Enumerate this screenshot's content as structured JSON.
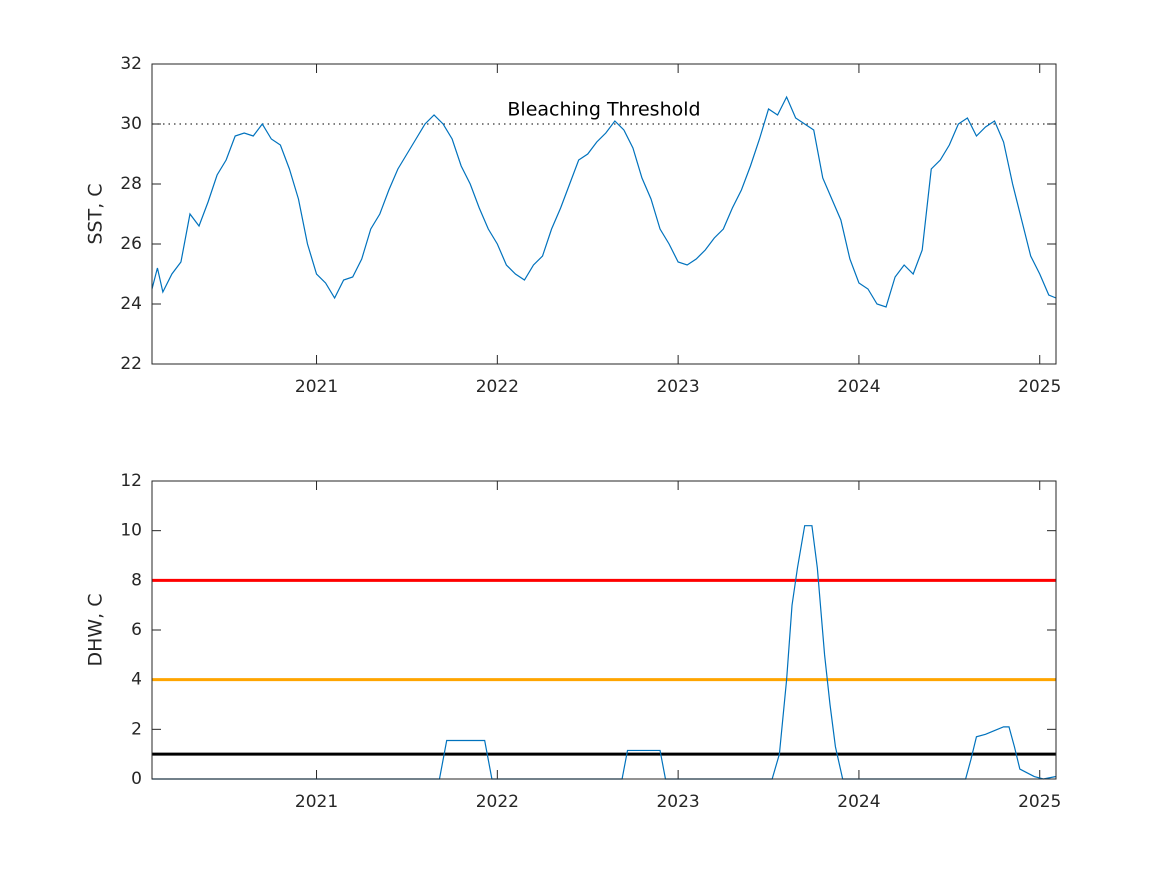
{
  "chart_data": [
    {
      "type": "line",
      "ylabel": "SST, C",
      "xlim": [
        2020.09,
        2025.09
      ],
      "xticks": [
        2021,
        2022,
        2023,
        2024,
        2025
      ],
      "ylim": [
        22,
        32
      ],
      "yticks": [
        22,
        24,
        26,
        28,
        30,
        32
      ],
      "x": [
        2020.09,
        2020.12,
        2020.15,
        2020.2,
        2020.25,
        2020.3,
        2020.35,
        2020.4,
        2020.45,
        2020.5,
        2020.55,
        2020.6,
        2020.65,
        2020.7,
        2020.75,
        2020.8,
        2020.85,
        2020.9,
        2020.95,
        2021.0,
        2021.05,
        2021.1,
        2021.15,
        2021.2,
        2021.25,
        2021.3,
        2021.35,
        2021.4,
        2021.45,
        2021.5,
        2021.55,
        2021.6,
        2021.65,
        2021.7,
        2021.75,
        2021.8,
        2021.85,
        2021.9,
        2021.95,
        2022.0,
        2022.05,
        2022.1,
        2022.15,
        2022.2,
        2022.25,
        2022.3,
        2022.35,
        2022.4,
        2022.45,
        2022.5,
        2022.55,
        2022.6,
        2022.65,
        2022.7,
        2022.75,
        2022.8,
        2022.85,
        2022.9,
        2022.95,
        2023.0,
        2023.05,
        2023.1,
        2023.15,
        2023.2,
        2023.25,
        2023.3,
        2023.35,
        2023.4,
        2023.45,
        2023.5,
        2023.55,
        2023.6,
        2023.65,
        2023.7,
        2023.75,
        2023.8,
        2023.85,
        2023.9,
        2023.95,
        2024.0,
        2024.05,
        2024.1,
        2024.15,
        2024.2,
        2024.25,
        2024.3,
        2024.35,
        2024.4,
        2024.45,
        2024.5,
        2024.55,
        2024.6,
        2024.65,
        2024.7,
        2024.75,
        2024.8,
        2024.85,
        2024.9,
        2024.95,
        2025.0,
        2025.05,
        2025.09
      ],
      "series": [
        {
          "color": "#0072bd",
          "values": [
            24.5,
            25.2,
            24.4,
            25.0,
            25.4,
            27.0,
            26.6,
            27.4,
            28.3,
            28.8,
            29.6,
            29.7,
            29.6,
            30.0,
            29.5,
            29.3,
            28.5,
            27.5,
            26.0,
            25.0,
            24.7,
            24.2,
            24.8,
            24.9,
            25.5,
            26.5,
            27.0,
            27.8,
            28.5,
            29.0,
            29.5,
            30.0,
            30.3,
            30.0,
            29.5,
            28.6,
            28.0,
            27.2,
            26.5,
            26.0,
            25.3,
            25.0,
            24.8,
            25.3,
            25.6,
            26.5,
            27.2,
            28.0,
            28.8,
            29.0,
            29.4,
            29.7,
            30.1,
            29.8,
            29.2,
            28.2,
            27.5,
            26.5,
            26.0,
            25.4,
            25.3,
            25.5,
            25.8,
            26.2,
            26.5,
            27.2,
            27.8,
            28.6,
            29.5,
            30.5,
            30.3,
            30.9,
            30.2,
            30.0,
            29.8,
            28.2,
            27.5,
            26.8,
            25.5,
            24.7,
            24.5,
            24.0,
            23.9,
            24.9,
            25.3,
            25.0,
            25.8,
            28.5,
            28.8,
            29.3,
            30.0,
            30.2,
            29.6,
            29.9,
            30.1,
            29.4,
            28.0,
            26.8,
            25.6,
            25.0,
            24.3,
            24.2
          ]
        }
      ],
      "hlines": [
        {
          "value": 30,
          "color": "#000000",
          "style": "dotted",
          "label": "Bleaching Threshold"
        }
      ]
    },
    {
      "type": "line",
      "ylabel": "DHW, C",
      "xlim": [
        2020.09,
        2025.09
      ],
      "xticks": [
        2021,
        2022,
        2023,
        2024,
        2025
      ],
      "ylim": [
        0,
        12
      ],
      "yticks": [
        0,
        2,
        4,
        6,
        8,
        10,
        12
      ],
      "x": [
        2020.09,
        2021.68,
        2021.72,
        2021.93,
        2021.97,
        2022.69,
        2022.72,
        2022.9,
        2022.93,
        2023.52,
        2023.56,
        2023.6,
        2023.63,
        2023.66,
        2023.7,
        2023.74,
        2023.77,
        2023.81,
        2023.84,
        2023.87,
        2023.91,
        2024.59,
        2024.62,
        2024.65,
        2024.7,
        2024.75,
        2024.8,
        2024.83,
        2024.86,
        2024.89,
        2024.93,
        2024.97,
        2025.02,
        2025.09
      ],
      "series": [
        {
          "color": "#0072bd",
          "values": [
            0,
            0,
            1.55,
            1.55,
            0,
            0,
            1.15,
            1.15,
            0,
            0,
            1.0,
            4.0,
            7.0,
            8.5,
            10.2,
            10.2,
            8.5,
            5.0,
            3.0,
            1.3,
            0,
            0,
            0.8,
            1.7,
            1.8,
            1.95,
            2.1,
            2.1,
            1.3,
            0.4,
            0.25,
            0.1,
            0,
            0.1
          ]
        }
      ],
      "hlines": [
        {
          "value": 8,
          "color": "#ff0000",
          "style": "solid"
        },
        {
          "value": 4,
          "color": "#ffa500",
          "style": "solid"
        },
        {
          "value": 1,
          "color": "#000000",
          "style": "solid"
        }
      ]
    }
  ]
}
